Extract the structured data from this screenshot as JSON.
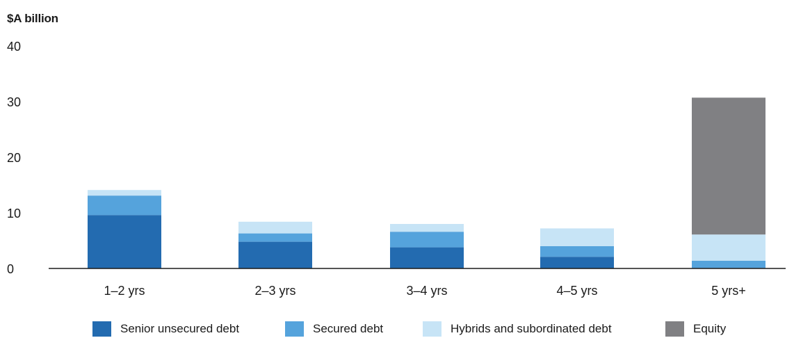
{
  "chart_data": {
    "type": "bar",
    "stacked": true,
    "ylabel": "$A billion",
    "ylim": [
      0,
      40
    ],
    "yticks": [
      0,
      10,
      20,
      30,
      40
    ],
    "categories": [
      "1–2 yrs",
      "2–3 yrs",
      "3–4 yrs",
      "4–5 yrs",
      "5 yrs+"
    ],
    "series": [
      {
        "name": "Senior unsecured debt",
        "color": "#236bb0",
        "values": [
          9.6,
          4.8,
          3.8,
          2.1,
          0.1
        ]
      },
      {
        "name": "Secured debt",
        "color": "#55a3dc",
        "values": [
          3.5,
          1.5,
          2.8,
          1.9,
          1.3
        ]
      },
      {
        "name": "Hybrids and subordinated debt",
        "color": "#c7e4f6",
        "values": [
          1.0,
          2.1,
          1.4,
          3.2,
          4.7
        ]
      },
      {
        "name": "Equity",
        "color": "#808083",
        "values": [
          0,
          0,
          0,
          0,
          24.6
        ]
      }
    ],
    "grid": false,
    "legend_position": "bottom"
  }
}
